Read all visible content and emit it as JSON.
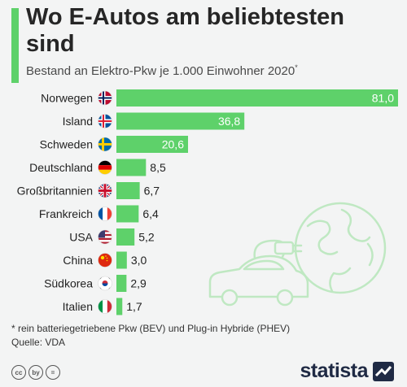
{
  "title": "Wo E-Autos am beliebtesten sind",
  "subtitle": "Bestand an Elektro-Pkw je 1.000 Einwohner 2020",
  "subtitle_marker": "*",
  "footnote": "* rein batteriegetriebene Pkw (BEV) und Plug-in Hybride (PHEV)",
  "source": "Quelle: VDA",
  "brand": "statista",
  "license_icons": [
    "cc",
    "by",
    "="
  ],
  "colors": {
    "bar": "#5ed16a",
    "accent": "#5ed16a",
    "illustration": "#bfe8c2"
  },
  "chart_data": {
    "type": "bar",
    "orientation": "horizontal",
    "categories": [
      "Norwegen",
      "Island",
      "Schweden",
      "Deutschland",
      "Großbritannien",
      "Frankreich",
      "USA",
      "China",
      "Südkorea",
      "Italien"
    ],
    "values": [
      81.0,
      36.8,
      20.6,
      8.5,
      6.7,
      6.4,
      5.2,
      3.0,
      2.9,
      1.7
    ],
    "value_labels": [
      "81,0",
      "36,8",
      "20,6",
      "8,5",
      "6,7",
      "6,4",
      "5,2",
      "3,0",
      "2,9",
      "1,7"
    ],
    "flags": [
      "norway-flag-icon",
      "iceland-flag-icon",
      "sweden-flag-icon",
      "germany-flag-icon",
      "uk-flag-icon",
      "france-flag-icon",
      "usa-flag-icon",
      "china-flag-icon",
      "south-korea-flag-icon",
      "italy-flag-icon"
    ],
    "xlim": [
      0,
      81.0
    ],
    "grid": false,
    "legend": "none"
  }
}
